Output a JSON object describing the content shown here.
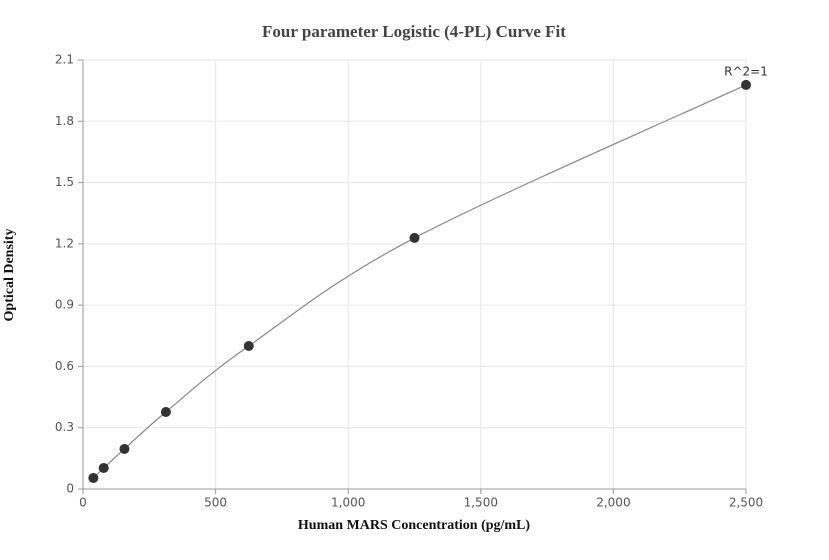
{
  "chart_data": {
    "type": "scatter",
    "title": "Four parameter Logistic (4-PL) Curve Fit",
    "x_label": "Human MARS Concentration (pg/mL)",
    "y_label": "Optical Density",
    "x": [
      39.06,
      78.125,
      156.25,
      312.5,
      625,
      1250,
      2500
    ],
    "y": [
      0.054,
      0.103,
      0.196,
      0.377,
      0.7,
      1.229,
      1.978
    ],
    "color": "#333333",
    "line_color": "#888888",
    "annotation": "R^2=1",
    "xlim": [
      0,
      2500
    ],
    "ylim": [
      0,
      2.1
    ],
    "xticks": [
      0,
      500,
      {
        "value": 1000,
        "label": "1,000"
      },
      {
        "value": 1500,
        "label": "1,500"
      },
      {
        "value": 2000,
        "label": "2,000"
      },
      {
        "value": 2500,
        "label": "2,500"
      }
    ],
    "yticks": [
      0,
      0.3,
      0.6,
      0.9,
      1.2,
      1.5,
      1.8,
      2.1
    ],
    "grid": true
  }
}
